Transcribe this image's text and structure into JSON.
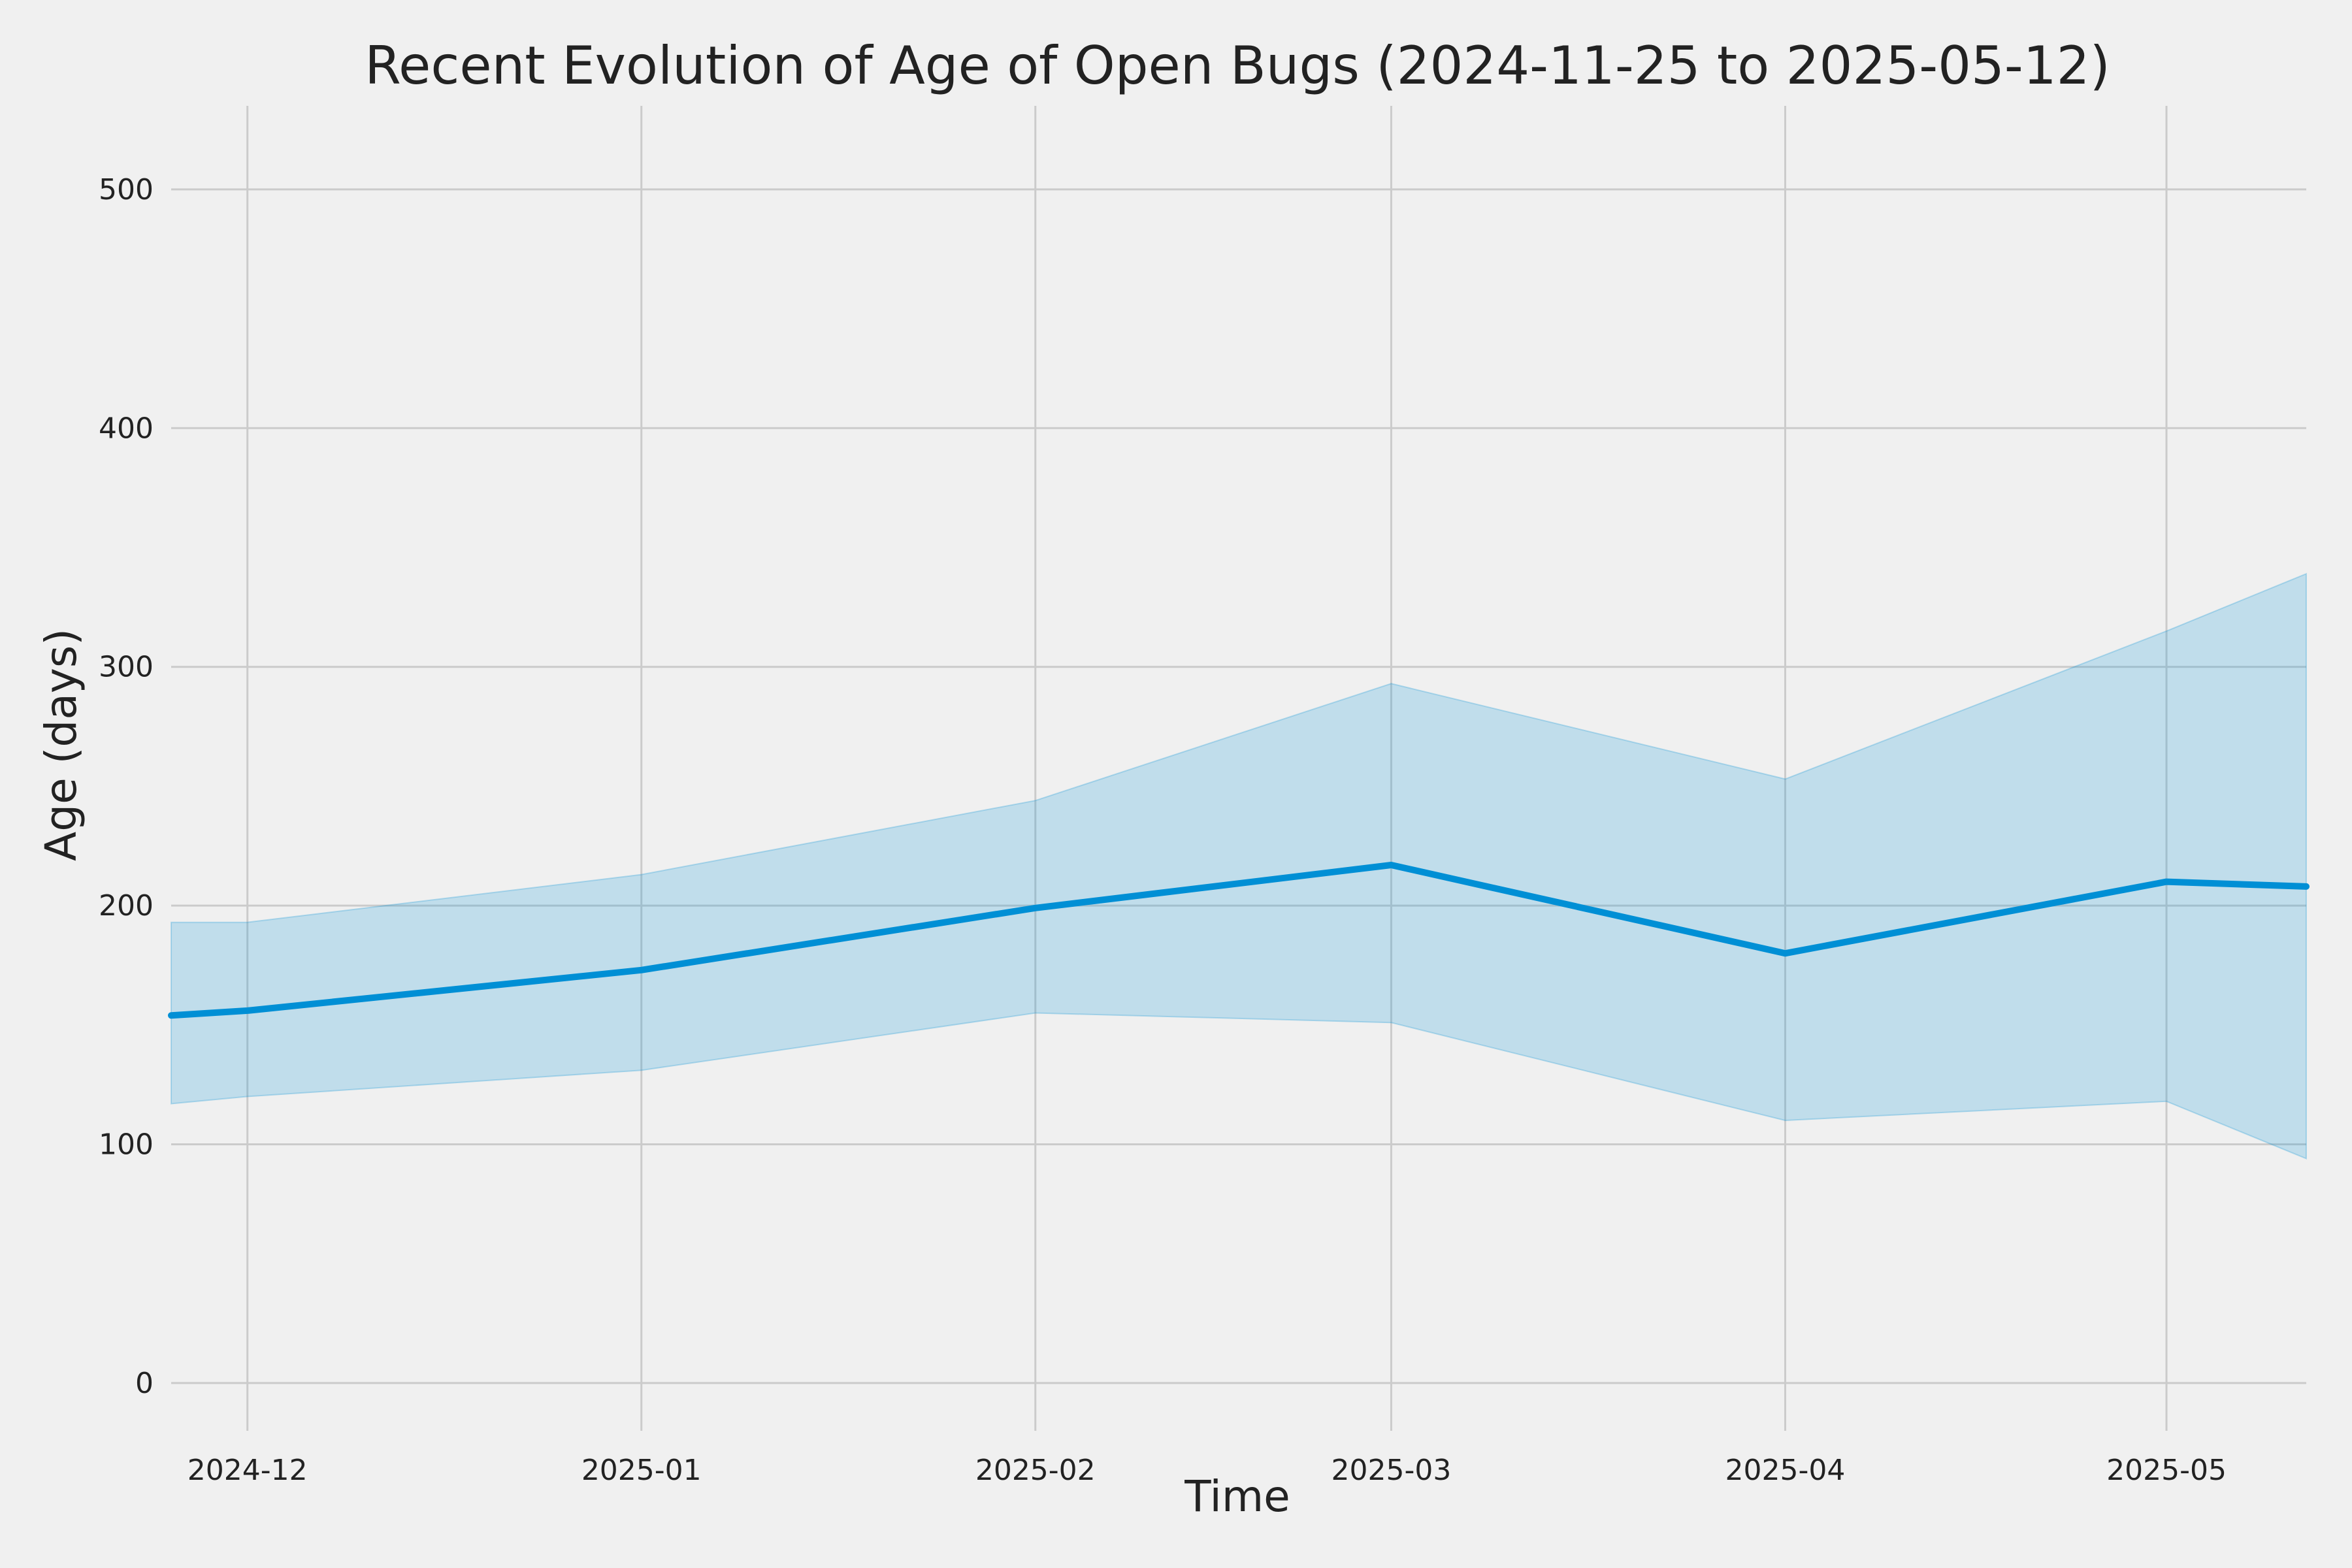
{
  "chart_data": {
    "type": "line",
    "title": "Recent Evolution of Age of Open Bugs (2024-11-25 to 2025-05-12)",
    "xlabel": "Time",
    "ylabel": "Age (days)",
    "x_range": [
      "2024-11-25",
      "2025-05-12"
    ],
    "ylim": [
      -20,
      535
    ],
    "x_ticks": [
      {
        "date": "2024-12-01",
        "label": "2024-12"
      },
      {
        "date": "2025-01-01",
        "label": "2025-01"
      },
      {
        "date": "2025-02-01",
        "label": "2025-02"
      },
      {
        "date": "2025-03-01",
        "label": "2025-03"
      },
      {
        "date": "2025-04-01",
        "label": "2025-04"
      },
      {
        "date": "2025-05-01",
        "label": "2025-05"
      }
    ],
    "y_ticks": [
      0,
      100,
      200,
      300,
      400,
      500
    ],
    "grid": true,
    "legend": "none",
    "series": [
      {
        "x": [
          "2024-11-25",
          "2024-12-01",
          "2025-01-01",
          "2025-02-01",
          "2025-03-01",
          "2025-04-01",
          "2025-05-01",
          "2025-05-12"
        ],
        "values": [
          154,
          156,
          173,
          199,
          217,
          180,
          210,
          208
        ],
        "color": "#008fd5"
      }
    ],
    "band": {
      "x": [
        "2024-11-25",
        "2024-12-01",
        "2025-01-01",
        "2025-02-01",
        "2025-03-01",
        "2025-04-01",
        "2025-05-01",
        "2025-05-12"
      ],
      "lower": [
        117,
        120,
        131,
        155,
        151,
        110,
        118,
        94
      ],
      "upper": [
        193,
        193,
        213,
        244,
        293,
        253,
        315,
        339
      ],
      "color": "#008fd5",
      "opacity": 0.2
    },
    "colors": {
      "background": "#f0f0f0",
      "grid": "#cbcbcb",
      "line": "#008fd5"
    }
  }
}
